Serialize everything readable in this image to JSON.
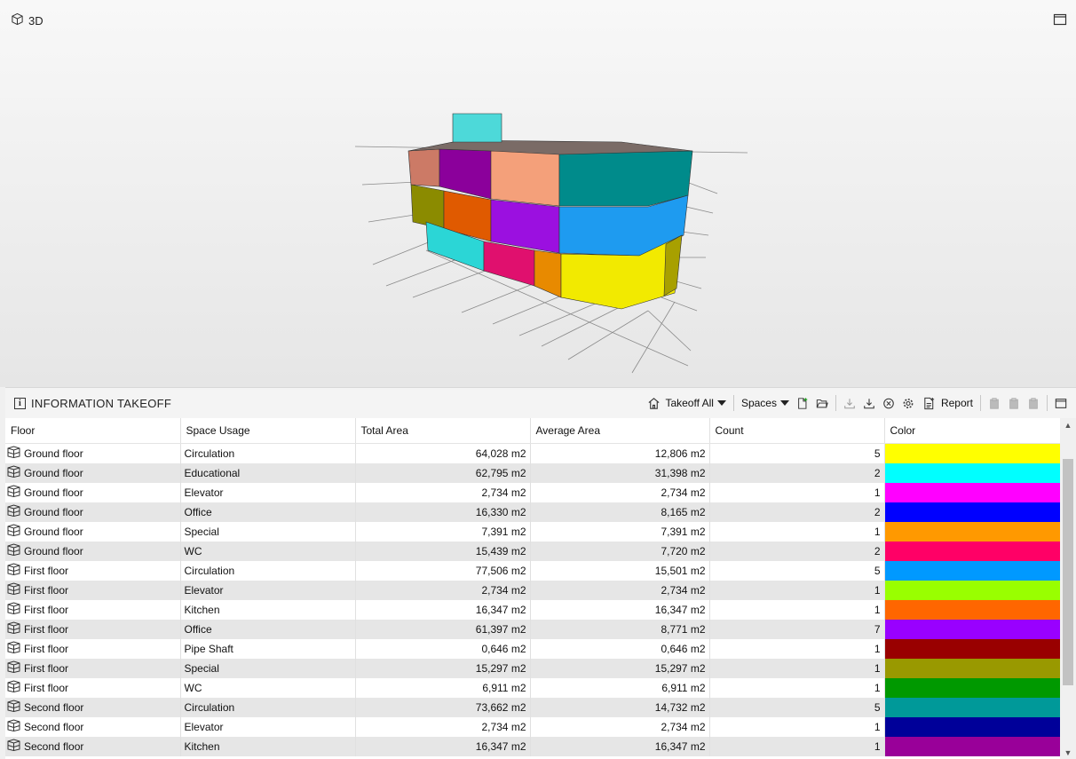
{
  "viewport": {
    "title": "3D"
  },
  "panel": {
    "title": "INFORMATION TAKEOFF",
    "toolbar": {
      "takeoff_all": "Takeoff All",
      "spaces": "Spaces",
      "report": "Report"
    }
  },
  "table": {
    "headers": {
      "floor": "Floor",
      "usage": "Space Usage",
      "total": "Total Area",
      "average": "Average Area",
      "count": "Count",
      "color": "Color"
    },
    "rows": [
      {
        "floor": "Ground floor",
        "usage": "Circulation",
        "total": "64,028 m2",
        "average": "12,806 m2",
        "count": "5",
        "color": "#ffff00"
      },
      {
        "floor": "Ground floor",
        "usage": "Educational",
        "total": "62,795 m2",
        "average": "31,398 m2",
        "count": "2",
        "color": "#00ffff"
      },
      {
        "floor": "Ground floor",
        "usage": "Elevator",
        "total": "2,734 m2",
        "average": "2,734 m2",
        "count": "1",
        "color": "#ff00ff"
      },
      {
        "floor": "Ground floor",
        "usage": "Office",
        "total": "16,330 m2",
        "average": "8,165 m2",
        "count": "2",
        "color": "#0000ff"
      },
      {
        "floor": "Ground floor",
        "usage": "Special",
        "total": "7,391 m2",
        "average": "7,391 m2",
        "count": "1",
        "color": "#ff9900"
      },
      {
        "floor": "Ground floor",
        "usage": "WC",
        "total": "15,439 m2",
        "average": "7,720 m2",
        "count": "2",
        "color": "#ff0066"
      },
      {
        "floor": "First floor",
        "usage": "Circulation",
        "total": "77,506 m2",
        "average": "15,501 m2",
        "count": "5",
        "color": "#0099ff"
      },
      {
        "floor": "First floor",
        "usage": "Elevator",
        "total": "2,734 m2",
        "average": "2,734 m2",
        "count": "1",
        "color": "#99ff00"
      },
      {
        "floor": "First floor",
        "usage": "Kitchen",
        "total": "16,347 m2",
        "average": "16,347 m2",
        "count": "1",
        "color": "#ff6600"
      },
      {
        "floor": "First floor",
        "usage": "Office",
        "total": "61,397 m2",
        "average": "8,771 m2",
        "count": "7",
        "color": "#9900ff"
      },
      {
        "floor": "First floor",
        "usage": "Pipe Shaft",
        "total": "0,646 m2",
        "average": "0,646 m2",
        "count": "1",
        "color": "#990000"
      },
      {
        "floor": "First floor",
        "usage": "Special",
        "total": "15,297 m2",
        "average": "15,297 m2",
        "count": "1",
        "color": "#999900"
      },
      {
        "floor": "First floor",
        "usage": "WC",
        "total": "6,911 m2",
        "average": "6,911 m2",
        "count": "1",
        "color": "#009900"
      },
      {
        "floor": "Second floor",
        "usage": "Circulation",
        "total": "73,662 m2",
        "average": "14,732 m2",
        "count": "5",
        "color": "#009999"
      },
      {
        "floor": "Second floor",
        "usage": "Elevator",
        "total": "2,734 m2",
        "average": "2,734 m2",
        "count": "1",
        "color": "#000099"
      },
      {
        "floor": "Second floor",
        "usage": "Kitchen",
        "total": "16,347 m2",
        "average": "16,347 m2",
        "count": "1",
        "color": "#990099"
      }
    ]
  }
}
